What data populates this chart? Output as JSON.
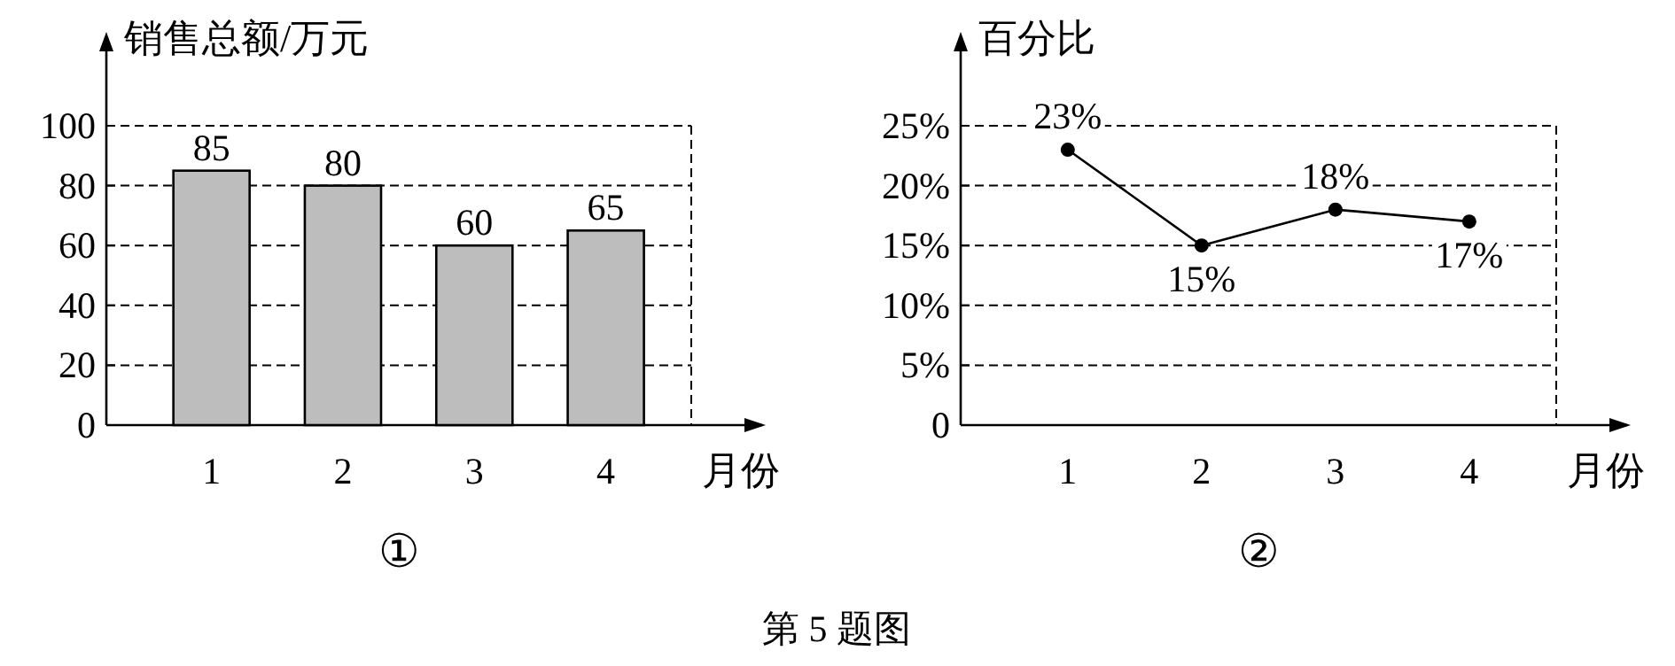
{
  "chart_data": [
    {
      "type": "bar",
      "ylabel": "销售总额/万元",
      "xlabel": "月份",
      "categories": [
        "1",
        "2",
        "3",
        "4"
      ],
      "values": [
        85,
        80,
        60,
        65
      ],
      "color": "#bdbdbd",
      "data_labels": true,
      "ylim": [
        0,
        100
      ],
      "yticks": [
        0,
        20,
        40,
        60,
        80,
        100
      ],
      "grid": "y",
      "annotations": [
        "①"
      ]
    },
    {
      "type": "line",
      "ylabel": "百分比",
      "xlabel": "月份",
      "categories": [
        "1",
        "2",
        "3",
        "4"
      ],
      "values": [
        23,
        15,
        18,
        17
      ],
      "value_labels": [
        "23%",
        "15%",
        "18%",
        "17%"
      ],
      "color": "#000000",
      "marker": "circle",
      "line_style": "solid",
      "ylim": [
        0,
        25
      ],
      "yticks": [
        {
          "value": 0,
          "label": "0"
        },
        {
          "value": 5,
          "label": "5%"
        },
        {
          "value": 10,
          "label": "10%"
        },
        {
          "value": 15,
          "label": "15%"
        },
        {
          "value": 20,
          "label": "20%"
        },
        {
          "value": 25,
          "label": "25%"
        }
      ],
      "grid": "y",
      "annotations": [
        "②",
        "第 5 题图"
      ]
    }
  ]
}
